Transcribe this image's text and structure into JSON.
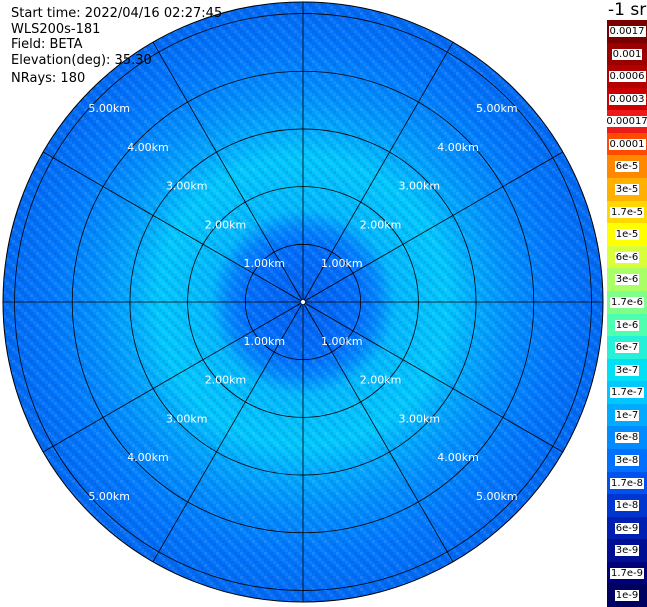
{
  "info": {
    "start_time": "Start time: 2022/04/16 02:27:45",
    "device": "WLS200s-181",
    "field": "Field: BETA",
    "elevation": "Elevation(deg): 35.30",
    "nrays": "NRays: 180"
  },
  "colorbar": {
    "unit_label": "-1 sr",
    "entries": [
      {
        "label": "0.0017",
        "color": "#7a0000"
      },
      {
        "label": "0.001",
        "color": "#9a0000"
      },
      {
        "label": "0.0006",
        "color": "#b00000"
      },
      {
        "label": "0.0003",
        "color": "#cc0000"
      },
      {
        "label": "0.00017",
        "color": "#ee1a1a"
      },
      {
        "label": "0.0001",
        "color": "#ff4a00"
      },
      {
        "label": "6e-5",
        "color": "#ff8800"
      },
      {
        "label": "3e-5",
        "color": "#ffb000"
      },
      {
        "label": "1.7e-5",
        "color": "#ffd800"
      },
      {
        "label": "1e-5",
        "color": "#ffff00"
      },
      {
        "label": "6e-6",
        "color": "#d8ff3a"
      },
      {
        "label": "3e-6",
        "color": "#a8ff66"
      },
      {
        "label": "1.7e-6",
        "color": "#7dff8a"
      },
      {
        "label": "1e-6",
        "color": "#4fffb0"
      },
      {
        "label": "6e-7",
        "color": "#26f0d8"
      },
      {
        "label": "3e-7",
        "color": "#00e0f5"
      },
      {
        "label": "1.7e-7",
        "color": "#00c8ff"
      },
      {
        "label": "1e-7",
        "color": "#00aaff"
      },
      {
        "label": "6e-8",
        "color": "#008cff"
      },
      {
        "label": "3e-8",
        "color": "#0070ff"
      },
      {
        "label": "1.7e-8",
        "color": "#0052ee"
      },
      {
        "label": "1e-8",
        "color": "#0036d0"
      },
      {
        "label": "6e-9",
        "color": "#001eb0"
      },
      {
        "label": "3e-9",
        "color": "#000e94"
      },
      {
        "label": "1.7e-9",
        "color": "#000078"
      },
      {
        "label": "1e-9",
        "color": "#000060"
      }
    ]
  },
  "chart_data": {
    "type": "heatmap",
    "projection": "polar",
    "field": "BETA",
    "rays": 180,
    "max_range_km": 5.2,
    "range_rings_km": [
      1,
      2,
      3,
      4,
      5
    ],
    "range_labels": [
      {
        "text": "1.00km",
        "km": 1
      },
      {
        "text": "2.00km",
        "km": 2
      },
      {
        "text": "3.00km",
        "km": 3
      },
      {
        "text": "4.00km",
        "km": 4
      },
      {
        "text": "5.00km",
        "km": 5
      }
    ],
    "spokes_deg": [
      0,
      30,
      60,
      90,
      120,
      150,
      180,
      210,
      240,
      270,
      300,
      330
    ],
    "radial_profile": [
      {
        "range_km": 0.0,
        "color": "#0060f0"
      },
      {
        "range_km": 1.0,
        "color": "#0070ff"
      },
      {
        "range_km": 1.3,
        "color": "#0088ff"
      },
      {
        "range_km": 1.6,
        "color": "#00b8ff"
      },
      {
        "range_km": 2.5,
        "color": "#00c8ff"
      },
      {
        "range_km": 3.0,
        "color": "#00aaff"
      },
      {
        "range_km": 3.6,
        "color": "#0090ff"
      },
      {
        "range_km": 4.4,
        "color": "#0078ff"
      },
      {
        "range_km": 5.2,
        "color": "#006af5"
      }
    ]
  }
}
